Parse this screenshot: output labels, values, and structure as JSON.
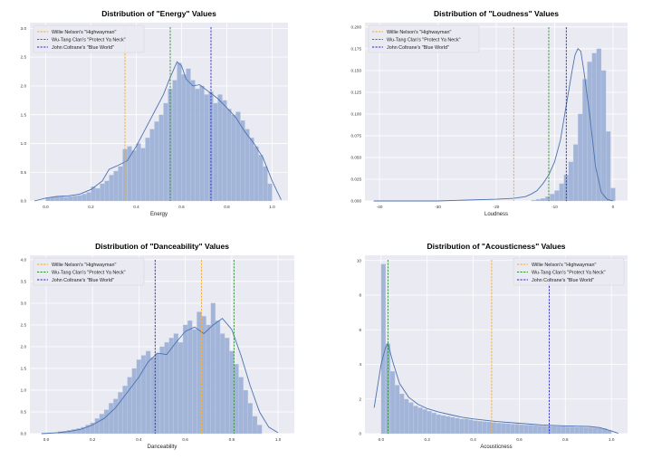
{
  "figure": {
    "legend_entries": [
      {
        "name": "Willie Nelson's \"Highwayman\"",
        "color": "#f5a623"
      },
      {
        "name": "Wu-Tang Clan's \"Protect Ya Neck\"",
        "color": "#2e8b2e"
      },
      {
        "name": "John Coltrane's \"Blue World\"",
        "color": "#2323c8"
      }
    ],
    "hist_color": "#9fb3d8",
    "kde_color": "#4c72b0",
    "background": "#eaeaf2"
  },
  "chart_data": [
    {
      "type": "histogram",
      "title": "Distribution of \"Energy\" Values",
      "xlabel": "Energy",
      "xlim": [
        -0.07,
        1.07
      ],
      "ylim": [
        0,
        3.1
      ],
      "xticks": [
        0.0,
        0.2,
        0.4,
        0.6,
        0.8,
        1.0
      ],
      "xtick_labels": [
        "0.0",
        "0.2",
        "0.4",
        "0.6",
        "0.8",
        "1.0"
      ],
      "yticks": [
        0.0,
        0.5,
        1.0,
        1.5,
        2.0,
        2.5,
        3.0
      ],
      "ytick_labels": [
        "0.0",
        "0.5",
        "1.0",
        "1.5",
        "2.0",
        "2.5",
        "3.0"
      ],
      "legend_position": "upper left",
      "bins": {
        "start": 0.0,
        "width": 0.02,
        "values": [
          0.05,
          0.07,
          0.08,
          0.08,
          0.07,
          0.08,
          0.09,
          0.1,
          0.12,
          0.15,
          0.25,
          0.22,
          0.3,
          0.35,
          0.45,
          0.52,
          0.6,
          0.9,
          0.95,
          0.88,
          1.0,
          0.92,
          1.1,
          1.25,
          1.38,
          1.5,
          1.7,
          1.95,
          2.1,
          2.4,
          2.2,
          2.3,
          2.1,
          1.95,
          2.0,
          1.85,
          1.9,
          1.7,
          1.85,
          1.75,
          1.6,
          1.5,
          1.55,
          1.4,
          1.25,
          1.1,
          0.95,
          0.8,
          0.6,
          0.3
        ]
      },
      "kde": {
        "x": [
          -0.05,
          0.0,
          0.05,
          0.1,
          0.15,
          0.2,
          0.25,
          0.28,
          0.32,
          0.36,
          0.4,
          0.44,
          0.48,
          0.52,
          0.55,
          0.58,
          0.6,
          0.62,
          0.65,
          0.68,
          0.72,
          0.76,
          0.8,
          0.84,
          0.88,
          0.92,
          0.96,
          1.0,
          1.04
        ],
        "y": [
          0.0,
          0.05,
          0.08,
          0.09,
          0.12,
          0.2,
          0.35,
          0.55,
          0.62,
          0.7,
          0.95,
          1.25,
          1.55,
          1.85,
          2.15,
          2.42,
          2.35,
          2.12,
          2.0,
          2.02,
          1.9,
          1.78,
          1.62,
          1.45,
          1.2,
          1.0,
          0.75,
          0.35,
          0.02
        ]
      },
      "reference_lines": [
        {
          "name": "Willie Nelson's \"Highwayman\"",
          "x": 0.35
        },
        {
          "name": "Wu-Tang Clan's \"Protect Ya Neck\"",
          "x": 0.55
        },
        {
          "name": "John Coltrane's \"Blue World\"",
          "x": 0.73
        }
      ]
    },
    {
      "type": "histogram",
      "title": "Distribution of \"Loudness\" Values",
      "xlabel": "Loudness",
      "xlim": [
        -42.5,
        2.5
      ],
      "ylim": [
        0,
        0.205
      ],
      "xticks": [
        -40,
        -30,
        -20,
        -10,
        0
      ],
      "xtick_labels": [
        "-40",
        "-30",
        "-20",
        "-10",
        "0"
      ],
      "yticks": [
        0.0,
        0.025,
        0.05,
        0.075,
        0.1,
        0.125,
        0.15,
        0.175,
        0.2
      ],
      "ytick_labels": [
        "0.000",
        "0.025",
        "0.050",
        "0.075",
        "0.100",
        "0.125",
        "0.150",
        "0.175",
        "0.200"
      ],
      "legend_position": "upper left",
      "bins": {
        "start": -14.0,
        "width": 0.8,
        "values": [
          0.001,
          0.002,
          0.003,
          0.005,
          0.008,
          0.012,
          0.02,
          0.03,
          0.045,
          0.065,
          0.1,
          0.14,
          0.16,
          0.17,
          0.175,
          0.15,
          0.08,
          0.015
        ]
      },
      "kde": {
        "x": [
          -41,
          -35,
          -30,
          -25,
          -20,
          -17,
          -15,
          -14,
          -13,
          -12,
          -11,
          -10,
          -9,
          -8,
          -7,
          -6.5,
          -6,
          -5.5,
          -5,
          -4,
          -3,
          -2,
          -1,
          0
        ],
        "y": [
          0.0,
          0.0,
          0.0,
          0.001,
          0.002,
          0.003,
          0.005,
          0.008,
          0.012,
          0.02,
          0.03,
          0.045,
          0.07,
          0.11,
          0.15,
          0.168,
          0.175,
          0.172,
          0.15,
          0.1,
          0.04,
          0.01,
          0.002,
          0.0
        ]
      },
      "reference_lines": [
        {
          "name": "Willie Nelson's \"Highwayman\"",
          "x": -17
        },
        {
          "name": "Wu-Tang Clan's \"Protect Ya Neck\"",
          "x": -11
        },
        {
          "name": "John Coltrane's \"Blue World\"",
          "x": -8
        }
      ]
    },
    {
      "type": "histogram",
      "title": "Distribution of \"Danceability\" Values",
      "xlabel": "Danceability",
      "xlim": [
        -0.07,
        1.07
      ],
      "ylim": [
        0,
        4.1
      ],
      "xticks": [
        0.0,
        0.2,
        0.4,
        0.6,
        0.8,
        1.0
      ],
      "xtick_labels": [
        "0.0",
        "0.2",
        "0.4",
        "0.6",
        "0.8",
        "1.0"
      ],
      "yticks": [
        0.0,
        0.5,
        1.0,
        1.5,
        2.0,
        2.5,
        3.0,
        3.5,
        4.0
      ],
      "ytick_labels": [
        "0.0",
        "0.5",
        "1.0",
        "1.5",
        "2.0",
        "2.5",
        "3.0",
        "3.5",
        "4.0"
      ],
      "legend_position": "upper left",
      "bins": {
        "start": 0.05,
        "width": 0.02,
        "values": [
          0.05,
          0.06,
          0.08,
          0.1,
          0.12,
          0.15,
          0.2,
          0.25,
          0.35,
          0.45,
          0.55,
          0.7,
          0.8,
          0.95,
          1.1,
          1.3,
          1.5,
          1.7,
          1.8,
          1.9,
          1.75,
          1.85,
          2.0,
          2.1,
          2.2,
          2.3,
          2.1,
          2.5,
          2.6,
          2.4,
          2.8,
          2.7,
          2.5,
          3.0,
          2.6,
          2.3,
          2.2,
          1.9,
          1.6,
          1.3,
          1.0,
          0.7,
          0.4,
          0.2
        ]
      },
      "kde": {
        "x": [
          -0.02,
          0.05,
          0.1,
          0.15,
          0.2,
          0.25,
          0.3,
          0.35,
          0.4,
          0.44,
          0.48,
          0.52,
          0.56,
          0.6,
          0.64,
          0.68,
          0.72,
          0.76,
          0.8,
          0.84,
          0.88,
          0.92,
          0.96,
          1.0
        ],
        "y": [
          0.0,
          0.02,
          0.05,
          0.1,
          0.2,
          0.35,
          0.6,
          0.95,
          1.3,
          1.65,
          1.85,
          1.82,
          2.1,
          2.35,
          2.45,
          2.3,
          2.5,
          2.65,
          2.4,
          1.8,
          1.1,
          0.5,
          0.15,
          0.02
        ]
      },
      "reference_lines": [
        {
          "name": "Willie Nelson's \"Highwayman\"",
          "x": 0.67
        },
        {
          "name": "Wu-Tang Clan's \"Protect Ya Neck\"",
          "x": 0.81
        },
        {
          "name": "John Coltrane's \"Blue World\"",
          "x": 0.47
        }
      ]
    },
    {
      "type": "histogram",
      "title": "Distribution of \"Acousticness\" Values",
      "xlabel": "Acousticness",
      "xlim": [
        -0.07,
        1.07
      ],
      "ylim": [
        0,
        10.3
      ],
      "xticks": [
        0.0,
        0.2,
        0.4,
        0.6,
        0.8,
        1.0
      ],
      "xtick_labels": [
        "0.0",
        "0.2",
        "0.4",
        "0.6",
        "0.8",
        "1.0"
      ],
      "yticks": [
        0,
        2,
        4,
        6,
        8,
        10
      ],
      "ytick_labels": [
        "0",
        "2",
        "4",
        "6",
        "8",
        "10"
      ],
      "legend_position": "upper right",
      "bins": {
        "start": 0.0,
        "width": 0.02,
        "values": [
          9.8,
          5.2,
          3.6,
          2.8,
          2.3,
          2.0,
          1.8,
          1.6,
          1.5,
          1.4,
          1.3,
          1.2,
          1.1,
          1.05,
          1.0,
          0.95,
          0.9,
          0.85,
          0.85,
          0.8,
          0.75,
          0.72,
          0.7,
          0.68,
          0.65,
          0.62,
          0.6,
          0.58,
          0.55,
          0.55,
          0.52,
          0.5,
          0.5,
          0.48,
          0.46,
          0.45,
          0.44,
          0.43,
          0.42,
          0.42,
          0.4,
          0.4,
          0.38,
          0.38,
          0.36,
          0.35,
          0.34,
          0.32,
          0.3,
          0.2
        ]
      },
      "kde": {
        "x": [
          -0.03,
          0.0,
          0.02,
          0.03,
          0.05,
          0.08,
          0.12,
          0.16,
          0.2,
          0.25,
          0.3,
          0.35,
          0.4,
          0.5,
          0.6,
          0.7,
          0.8,
          0.9,
          0.95,
          1.0,
          1.03
        ],
        "y": [
          1.5,
          4.0,
          5.0,
          5.2,
          4.2,
          2.9,
          2.1,
          1.7,
          1.45,
          1.25,
          1.1,
          0.95,
          0.85,
          0.7,
          0.6,
          0.5,
          0.45,
          0.42,
          0.35,
          0.15,
          0.02
        ]
      },
      "reference_lines": [
        {
          "name": "Willie Nelson's \"Highwayman\"",
          "x": 0.48
        },
        {
          "name": "Wu-Tang Clan's \"Protect Ya Neck\"",
          "x": 0.03
        },
        {
          "name": "John Coltrane's \"Blue World\"",
          "x": 0.73
        }
      ]
    }
  ]
}
